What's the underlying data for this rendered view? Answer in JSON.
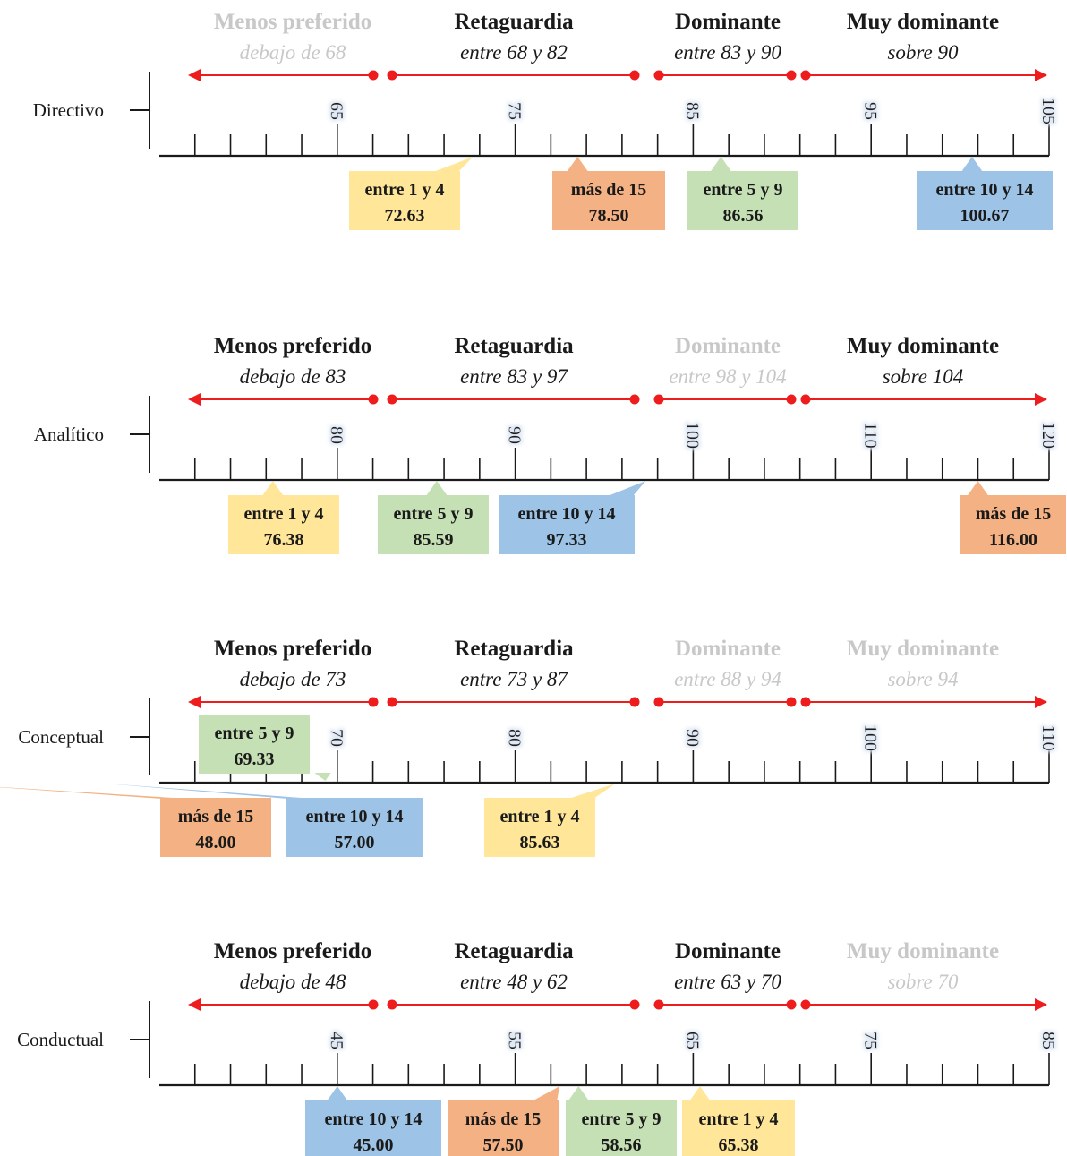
{
  "chart_data": [
    {
      "type": "scale-diagram",
      "row_label": "Directivo",
      "axis": {
        "min": 55,
        "max": 105,
        "tick_step": 2,
        "labels": [
          65,
          75,
          85,
          95,
          105
        ]
      },
      "categories": [
        {
          "title": "Menos preferido",
          "range": "debajo de 68",
          "highlighted": false
        },
        {
          "title": "Retaguardia",
          "range": "entre 68 y 82",
          "highlighted": true
        },
        {
          "title": "Dominante",
          "range": "entre 83 y 90",
          "highlighted": true
        },
        {
          "title": "Muy dominante",
          "range": "sobre 90",
          "highlighted": true
        }
      ],
      "callouts": [
        {
          "label": "entre 1 y 4",
          "value": 72.63,
          "value_text": "72.63",
          "color": "#ffe699"
        },
        {
          "label": "más de 15",
          "value": 78.5,
          "value_text": "78.50",
          "color": "#f4b183"
        },
        {
          "label": "entre 5 y 9",
          "value": 86.56,
          "value_text": "86.56",
          "color": "#c5e0b4"
        },
        {
          "label": "entre 10 y 14",
          "value": 100.67,
          "value_text": "100.67",
          "color": "#9dc3e6"
        }
      ]
    },
    {
      "type": "scale-diagram",
      "row_label": "Analítico",
      "axis": {
        "min": 70,
        "max": 120,
        "tick_step": 2,
        "labels": [
          80,
          90,
          100,
          110,
          120
        ]
      },
      "categories": [
        {
          "title": "Menos preferido",
          "range": "debajo de 83",
          "highlighted": true
        },
        {
          "title": "Retaguardia",
          "range": "entre 83 y 97",
          "highlighted": true
        },
        {
          "title": "Dominante",
          "range": "entre 98 y 104",
          "highlighted": false
        },
        {
          "title": "Muy dominante",
          "range": "sobre 104",
          "highlighted": true
        }
      ],
      "callouts": [
        {
          "label": "entre 1 y 4",
          "value": 76.38,
          "value_text": "76.38",
          "color": "#ffe699"
        },
        {
          "label": "entre 5 y 9",
          "value": 85.59,
          "value_text": "85.59",
          "color": "#c5e0b4"
        },
        {
          "label": "entre 10 y 14",
          "value": 97.33,
          "value_text": "97.33",
          "color": "#9dc3e6"
        },
        {
          "label": "más de 15",
          "value": 116.0,
          "value_text": "116.00",
          "color": "#f4b183"
        }
      ]
    },
    {
      "type": "scale-diagram",
      "row_label": "Conceptual",
      "axis": {
        "min": 60,
        "max": 110,
        "tick_step": 2,
        "labels": [
          70,
          80,
          90,
          100,
          110
        ]
      },
      "categories": [
        {
          "title": "Menos preferido",
          "range": "debajo de 73",
          "highlighted": true
        },
        {
          "title": "Retaguardia",
          "range": "entre 73 y 87",
          "highlighted": true
        },
        {
          "title": "Dominante",
          "range": "entre 88 y 94",
          "highlighted": false
        },
        {
          "title": "Muy dominante",
          "range": "sobre 94",
          "highlighted": false
        }
      ],
      "callouts": [
        {
          "label": "entre 5 y 9",
          "value": 69.33,
          "value_text": "69.33",
          "color": "#c5e0b4"
        },
        {
          "label": "más de 15",
          "value": 48.0,
          "value_text": "48.00",
          "color": "#f4b183"
        },
        {
          "label": "entre 10 y 14",
          "value": 57.0,
          "value_text": "57.00",
          "color": "#9dc3e6"
        },
        {
          "label": "entre 1 y 4",
          "value": 85.63,
          "value_text": "85.63",
          "color": "#ffe699"
        }
      ]
    },
    {
      "type": "scale-diagram",
      "row_label": "Conductual",
      "axis": {
        "min": 35,
        "max": 85,
        "tick_step": 2,
        "labels": [
          45,
          55,
          65,
          75,
          85
        ]
      },
      "categories": [
        {
          "title": "Menos preferido",
          "range": "debajo de 48",
          "highlighted": true
        },
        {
          "title": "Retaguardia",
          "range": "entre 48 y 62",
          "highlighted": true
        },
        {
          "title": "Dominante",
          "range": "entre 63 y 70",
          "highlighted": true
        },
        {
          "title": "Muy dominante",
          "range": "sobre 70",
          "highlighted": false
        }
      ],
      "callouts": [
        {
          "label": "entre 10 y 14",
          "value": 45.0,
          "value_text": "45.00",
          "color": "#9dc3e6"
        },
        {
          "label": "más de 15",
          "value": 57.5,
          "value_text": "57.50",
          "color": "#f4b183"
        },
        {
          "label": "entre 5 y 9",
          "value": 58.56,
          "value_text": "58.56",
          "color": "#c5e0b4"
        },
        {
          "label": "entre 1 y 4",
          "value": 65.38,
          "value_text": "65.38",
          "color": "#ffe699"
        }
      ]
    }
  ],
  "style": {
    "arrow_color": "#ee1c1c",
    "axis_color": "#1a1a1a",
    "dim_text_color": "#c8c8c8",
    "text_color": "#1a1a1a"
  }
}
